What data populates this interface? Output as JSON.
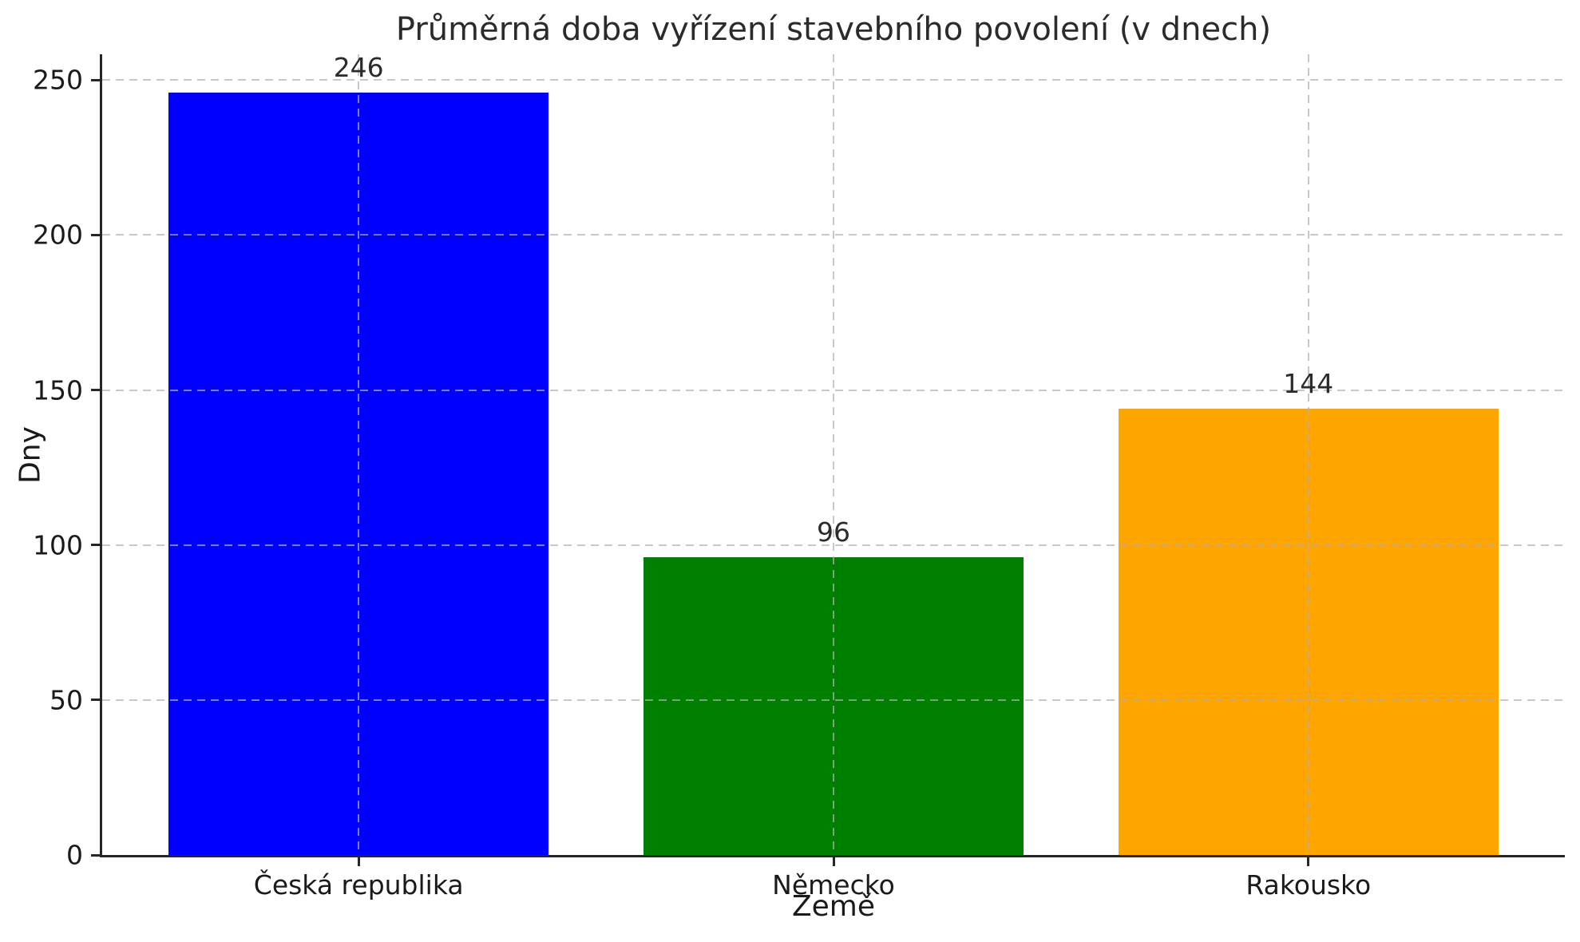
{
  "chart_data": {
    "type": "bar",
    "title": "Průměrná doba vyřízení stavebního povolení (v dnech)",
    "xlabel": "Země",
    "ylabel": "Dny",
    "categories": [
      "Česká republika",
      "Německo",
      "Rakousko"
    ],
    "values": [
      246,
      96,
      144
    ],
    "bar_value_labels": [
      "246",
      "96",
      "144"
    ],
    "bar_colors": [
      "#0000ff",
      "#008000",
      "#ffa500"
    ],
    "ytick_labels": [
      "0",
      "50",
      "100",
      "150",
      "200",
      "250"
    ],
    "ytick_values": [
      0,
      50,
      100,
      150,
      200,
      250
    ],
    "ylim": [
      0,
      258.3
    ],
    "bar_width_fraction": 0.8,
    "grid": "dashed, both axes, drawn above bars",
    "legend_position": "none",
    "spines": [
      "left",
      "bottom"
    ]
  },
  "style": {
    "grid_color": "rgba(176,176,176,0.7)",
    "axis_color": "#262626",
    "text_color": "#1a1a1a",
    "background_color": "#ffffff"
  }
}
